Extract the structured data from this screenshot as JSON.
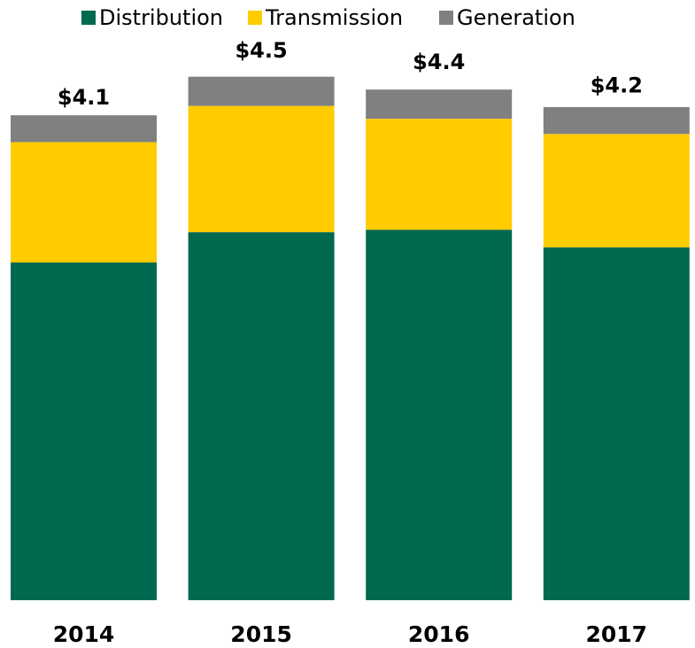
{
  "chart_data": {
    "type": "stacked_bar",
    "categories": [
      "2014",
      "2015",
      "2016",
      "2017"
    ],
    "series": [
      {
        "name": "Distribution",
        "color": "#00694f",
        "values": [
          2.89,
          3.15,
          3.17,
          3.02
        ]
      },
      {
        "name": "Transmission",
        "color": "#ffcc00",
        "values": [
          1.03,
          1.08,
          0.95,
          0.97
        ]
      },
      {
        "name": "Generation",
        "color": "#808080",
        "values": [
          0.23,
          0.25,
          0.25,
          0.23
        ]
      }
    ],
    "totals": {
      "values": [
        4.1,
        4.5,
        4.4,
        4.2
      ],
      "value_labels": [
        "$4.1",
        "$4.5",
        "$4.4",
        "$4.2"
      ]
    },
    "ylim": [
      0,
      4.6
    ],
    "legend": "top"
  }
}
